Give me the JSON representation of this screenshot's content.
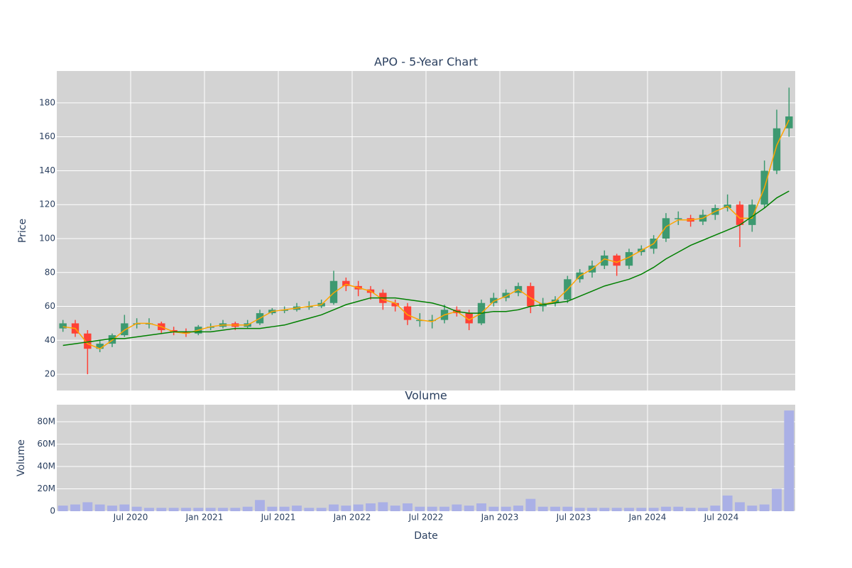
{
  "chart_data": [
    {
      "type": "candlestick",
      "title": "APO - 5-Year Chart",
      "y_label": "Price",
      "x": [
        "2020-01",
        "2020-02",
        "2020-03",
        "2020-04",
        "2020-05",
        "2020-06",
        "2020-07",
        "2020-08",
        "2020-09",
        "2020-10",
        "2020-11",
        "2020-12",
        "2021-01",
        "2021-02",
        "2021-03",
        "2021-04",
        "2021-05",
        "2021-06",
        "2021-07",
        "2021-08",
        "2021-09",
        "2021-10",
        "2021-11",
        "2021-12",
        "2022-01",
        "2022-02",
        "2022-03",
        "2022-04",
        "2022-05",
        "2022-06",
        "2022-07",
        "2022-08",
        "2022-09",
        "2022-10",
        "2022-11",
        "2022-12",
        "2023-01",
        "2023-02",
        "2023-03",
        "2023-04",
        "2023-05",
        "2023-06",
        "2023-07",
        "2023-08",
        "2023-09",
        "2023-10",
        "2023-11",
        "2023-12",
        "2024-01",
        "2024-02",
        "2024-03",
        "2024-04",
        "2024-05",
        "2024-06",
        "2024-07",
        "2024-08",
        "2024-09",
        "2024-10",
        "2024-11",
        "2024-12"
      ],
      "open": [
        47,
        50,
        44,
        35,
        38,
        43,
        50,
        50,
        50,
        46,
        45,
        44,
        48,
        48,
        50,
        48,
        50,
        56,
        58,
        58,
        60,
        60,
        62,
        75,
        72,
        70,
        68,
        62,
        60,
        52,
        52,
        52,
        58,
        56,
        50,
        62,
        65,
        68,
        72,
        60,
        62,
        64,
        76,
        80,
        84,
        90,
        84,
        92,
        94,
        100,
        112,
        112,
        110,
        114,
        118,
        120,
        108,
        120,
        140,
        165
      ],
      "high": [
        52,
        52,
        46,
        40,
        44,
        55,
        53,
        53,
        51,
        48,
        47,
        49,
        50,
        52,
        51,
        52,
        58,
        59,
        60,
        62,
        63,
        64,
        81,
        77,
        75,
        72,
        70,
        64,
        62,
        56,
        55,
        61,
        60,
        58,
        64,
        68,
        70,
        74,
        74,
        65,
        66,
        78,
        82,
        87,
        93,
        91,
        94,
        96,
        102,
        115,
        116,
        114,
        117,
        120,
        126,
        122,
        123,
        146,
        176,
        189
      ],
      "low": [
        45,
        42,
        20,
        33,
        36,
        42,
        47,
        47,
        44,
        43,
        42,
        43,
        46,
        47,
        46,
        47,
        49,
        55,
        56,
        57,
        58,
        59,
        61,
        69,
        66,
        64,
        58,
        57,
        49,
        48,
        47,
        50,
        54,
        46,
        49,
        60,
        63,
        66,
        56,
        57,
        60,
        62,
        74,
        77,
        82,
        78,
        82,
        90,
        91,
        98,
        108,
        107,
        108,
        111,
        116,
        95,
        104,
        118,
        138,
        160
      ],
      "close": [
        50,
        44,
        35,
        38,
        43,
        50,
        50,
        50,
        46,
        45,
        44,
        48,
        48,
        50,
        48,
        50,
        56,
        58,
        58,
        60,
        60,
        62,
        75,
        72,
        70,
        68,
        62,
        60,
        52,
        52,
        52,
        58,
        56,
        50,
        62,
        65,
        68,
        72,
        60,
        62,
        64,
        76,
        80,
        84,
        90,
        84,
        92,
        94,
        100,
        112,
        112,
        110,
        114,
        118,
        120,
        108,
        120,
        140,
        165,
        172
      ],
      "increasing_color": "#3d9970",
      "decreasing_color": "#ff4136",
      "lines": [
        {
          "color": "#ffa500",
          "values": [
            48,
            47,
            38,
            35,
            40,
            46,
            50,
            50,
            48,
            45,
            44,
            46,
            48,
            49,
            49,
            49,
            53,
            57,
            58,
            59,
            60,
            61,
            68,
            73,
            71,
            69,
            64,
            62,
            55,
            52,
            51,
            55,
            57,
            52,
            56,
            63,
            66,
            70,
            65,
            61,
            63,
            70,
            78,
            82,
            88,
            86,
            89,
            93,
            97,
            107,
            111,
            111,
            112,
            116,
            119,
            112,
            112,
            130,
            155,
            170
          ]
        },
        {
          "color": "#008000",
          "values": [
            37,
            38,
            39,
            40,
            41,
            41,
            42,
            43,
            44,
            45,
            45,
            45,
            45,
            46,
            47,
            47,
            47,
            48,
            49,
            51,
            53,
            55,
            58,
            61,
            63,
            65,
            65,
            65,
            64,
            63,
            62,
            60,
            57,
            56,
            56,
            57,
            57,
            58,
            60,
            61,
            62,
            63,
            66,
            69,
            72,
            74,
            76,
            79,
            83,
            88,
            92,
            96,
            99,
            102,
            105,
            108,
            113,
            118,
            124,
            128
          ]
        }
      ],
      "xlim": [
        "2020-01",
        "2025-01"
      ],
      "ylim": [
        10.4,
        198.8
      ],
      "yticks": [
        20,
        40,
        60,
        80,
        100,
        120,
        140,
        160,
        180
      ],
      "grid": true
    },
    {
      "type": "bar",
      "title": "Volume",
      "y_label": "Volume",
      "x_label": "Date",
      "color": "#aab0e6",
      "x": [
        "2020-01",
        "2020-02",
        "2020-03",
        "2020-04",
        "2020-05",
        "2020-06",
        "2020-07",
        "2020-08",
        "2020-09",
        "2020-10",
        "2020-11",
        "2020-12",
        "2021-01",
        "2021-02",
        "2021-03",
        "2021-04",
        "2021-05",
        "2021-06",
        "2021-07",
        "2021-08",
        "2021-09",
        "2021-10",
        "2021-11",
        "2021-12",
        "2022-01",
        "2022-02",
        "2022-03",
        "2022-04",
        "2022-05",
        "2022-06",
        "2022-07",
        "2022-08",
        "2022-09",
        "2022-10",
        "2022-11",
        "2022-12",
        "2023-01",
        "2023-02",
        "2023-03",
        "2023-04",
        "2023-05",
        "2023-06",
        "2023-07",
        "2023-08",
        "2023-09",
        "2023-10",
        "2023-11",
        "2023-12",
        "2024-01",
        "2024-02",
        "2024-03",
        "2024-04",
        "2024-05",
        "2024-06",
        "2024-07",
        "2024-08",
        "2024-09",
        "2024-10",
        "2024-11",
        "2024-12"
      ],
      "values": [
        5000000,
        6000000,
        8000000,
        6000000,
        5000000,
        6000000,
        4000000,
        3000000,
        3000000,
        3000000,
        3000000,
        3000000,
        3000000,
        3000000,
        3000000,
        4000000,
        10000000,
        4000000,
        4000000,
        5000000,
        3000000,
        3000000,
        6000000,
        5000000,
        6000000,
        7000000,
        8000000,
        5000000,
        7000000,
        4000000,
        4000000,
        4000000,
        6000000,
        5000000,
        7000000,
        4000000,
        4000000,
        5000000,
        11000000,
        4000000,
        4000000,
        4000000,
        3000000,
        3000000,
        3000000,
        3000000,
        3000000,
        3000000,
        3000000,
        4000000,
        4000000,
        3000000,
        3000000,
        5000000,
        14000000,
        8000000,
        5000000,
        6000000,
        20000000,
        90000000
      ],
      "xlim": [
        "2020-01",
        "2025-01"
      ],
      "xticks": [
        {
          "value": "2020-07",
          "label": "Jul 2020"
        },
        {
          "value": "2021-01",
          "label": "Jan 2021"
        },
        {
          "value": "2021-07",
          "label": "Jul 2021"
        },
        {
          "value": "2022-01",
          "label": "Jan 2022"
        },
        {
          "value": "2022-07",
          "label": "Jul 2022"
        },
        {
          "value": "2023-01",
          "label": "Jan 2023"
        },
        {
          "value": "2023-07",
          "label": "Jul 2023"
        },
        {
          "value": "2024-01",
          "label": "Jan 2024"
        },
        {
          "value": "2024-07",
          "label": "Jul 2024"
        }
      ],
      "ylim": [
        0,
        95200000
      ],
      "yticks": [
        0,
        {
          "value": 20000000,
          "label": "20M"
        },
        {
          "value": 40000000,
          "label": "40M"
        },
        {
          "value": 60000000,
          "label": "60M"
        },
        {
          "value": 80000000,
          "label": "80M"
        }
      ],
      "grid": true
    }
  ]
}
